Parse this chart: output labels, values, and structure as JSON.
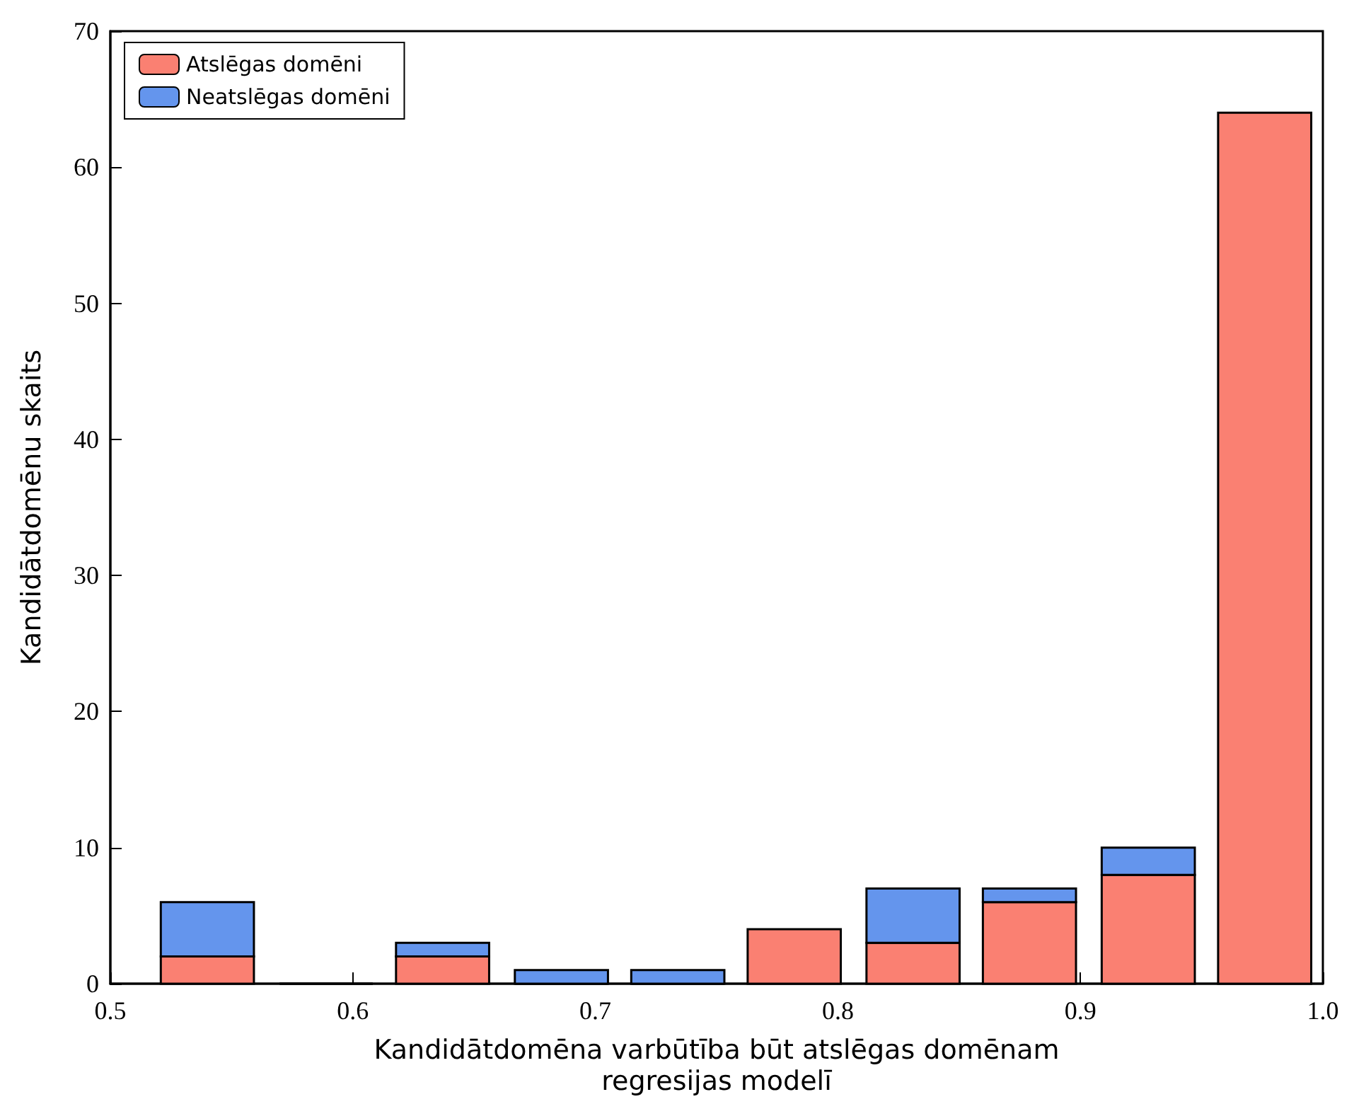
{
  "chart_data": {
    "type": "bar",
    "xlabel": "Kandidātdomēna varbūtība būt atslēgas domēnam\nregresijas modelī",
    "ylabel": "Kandidātdomēnu skaits",
    "x": [
      0.54,
      0.589,
      0.637,
      0.686,
      0.734,
      0.782,
      0.831,
      0.879,
      0.928,
      0.976
    ],
    "stacked": true,
    "series": [
      {
        "name": "Atslēgas domēni",
        "color": "#fa8072",
        "values": [
          2,
          0,
          2,
          0,
          0,
          4,
          3,
          6,
          8,
          64
        ]
      },
      {
        "name": "Neatslēgas domēni",
        "color": "#6495ed",
        "values": [
          4,
          0,
          1,
          1,
          1,
          0,
          4,
          1,
          2,
          0
        ]
      }
    ],
    "xlim": [
      0.5,
      1.0
    ],
    "xticks": [
      0.5,
      0.6,
      0.7,
      0.8,
      0.9,
      {
        "value": 1.0,
        "label": "1.0"
      }
    ],
    "ylim": [
      0,
      70
    ],
    "yticks": [
      0,
      10,
      20,
      30,
      40,
      50,
      60,
      70
    ],
    "legend": "top left",
    "grid": false
  }
}
